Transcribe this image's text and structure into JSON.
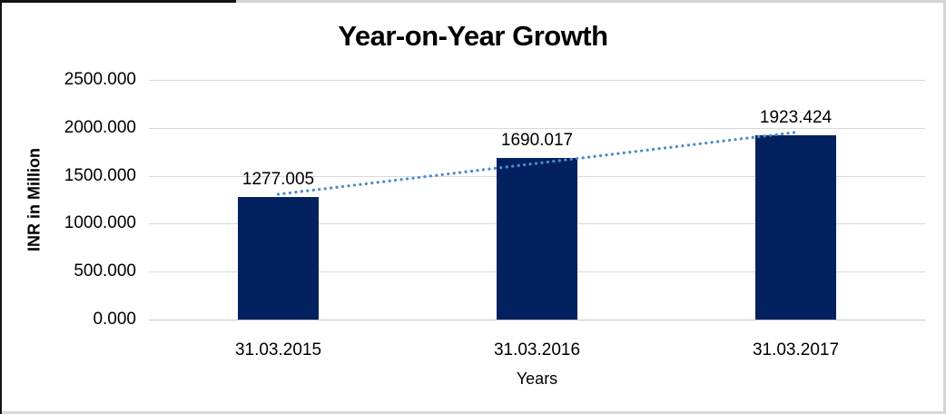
{
  "chart_data": {
    "type": "bar",
    "title": "Year-on-Year Growth",
    "xlabel": "Years",
    "ylabel": "INR in Million",
    "categories": [
      "31.03.2015",
      "31.03.2016",
      "31.03.2017"
    ],
    "values": [
      1277.005,
      1690.017,
      1923.424
    ],
    "data_labels": [
      "1277.005",
      "1690.017",
      "1923.424"
    ],
    "ytick_labels": [
      "0.000",
      "500.000",
      "1000.000",
      "1500.000",
      "2000.000",
      "2500.000"
    ],
    "ytick_values": [
      0,
      500,
      1000,
      1500,
      2000,
      2500
    ],
    "ylim": [
      0,
      2500
    ],
    "grid": true,
    "legend_position": "none",
    "bar_color": "#03215f",
    "gridline_color": "#d9d9d9",
    "trendline": {
      "type": "linear",
      "style": "dotted",
      "color": "#4f8ccb"
    }
  }
}
